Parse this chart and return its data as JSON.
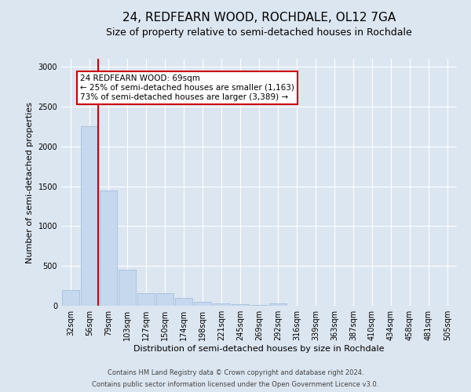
{
  "title": "24, REDFEARN WOOD, ROCHDALE, OL12 7GA",
  "subtitle": "Size of property relative to semi-detached houses in Rochdale",
  "xlabel": "Distribution of semi-detached houses by size in Rochdale",
  "ylabel": "Number of semi-detached properties",
  "footer_line1": "Contains HM Land Registry data © Crown copyright and database right 2024.",
  "footer_line2": "Contains public sector information licensed under the Open Government Licence v3.0.",
  "annotation_title": "24 REDFEARN WOOD: 69sqm",
  "annotation_line1": "← 25% of semi-detached houses are smaller (1,163)",
  "annotation_line2": "73% of semi-detached houses are larger (3,389) →",
  "bar_categories": [
    "32sqm",
    "56sqm",
    "79sqm",
    "103sqm",
    "127sqm",
    "150sqm",
    "174sqm",
    "198sqm",
    "221sqm",
    "245sqm",
    "269sqm",
    "292sqm",
    "316sqm",
    "339sqm",
    "363sqm",
    "387sqm",
    "410sqm",
    "434sqm",
    "458sqm",
    "481sqm",
    "505sqm"
  ],
  "bar_values": [
    200,
    2250,
    1450,
    450,
    160,
    160,
    100,
    50,
    30,
    20,
    5,
    30,
    0,
    0,
    0,
    0,
    0,
    0,
    0,
    0,
    0
  ],
  "bar_color": "#c5d8ed",
  "bar_edge_color": "#9ab8d8",
  "vline_color": "#cc0000",
  "vline_x_index": 1,
  "annotation_box_facecolor": "#ffffff",
  "annotation_box_edgecolor": "#cc0000",
  "ylim": [
    0,
    3100
  ],
  "yticks": [
    0,
    500,
    1000,
    1500,
    2000,
    2500,
    3000
  ],
  "background_color": "#dce6f1",
  "plot_background_color": "#dce6f1",
  "title_fontsize": 11,
  "subtitle_fontsize": 9,
  "ylabel_fontsize": 8,
  "xlabel_fontsize": 8,
  "tick_fontsize": 7,
  "annotation_fontsize": 7.5,
  "footer_fontsize": 6
}
